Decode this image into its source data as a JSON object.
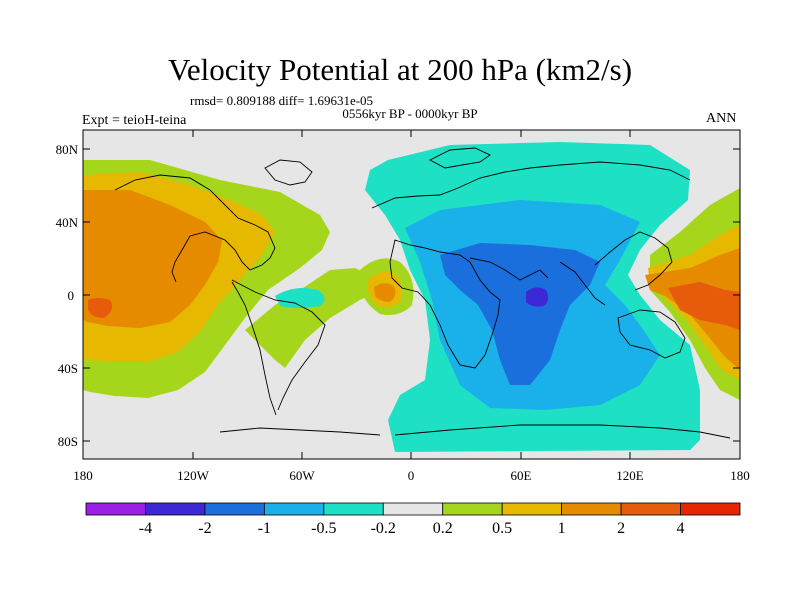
{
  "title": "Velocity Potential at 200 hPa (km2/s)",
  "stats": "rmsd= 0.809188 diff= 1.69631e-05",
  "period": "0556kyr BP - 0000kyr BP",
  "experiment": "Expt = teioH-teina",
  "season": "ANN",
  "map": {
    "lat_ticks": [
      "80N",
      "40N",
      "0",
      "40S",
      "80S"
    ],
    "lon_ticks": [
      "180",
      "120W",
      "60W",
      "0",
      "60E",
      "120E",
      "180"
    ]
  },
  "colorbar": {
    "colors": [
      "#9b1fe6",
      "#3c28d6",
      "#1a6fdc",
      "#1ab0ea",
      "#1ee0c4",
      "#e6e6e6",
      "#a6d61c",
      "#e6b800",
      "#e68a00",
      "#e65c0a",
      "#e62600"
    ],
    "labels": [
      "-4",
      "-2",
      "-1",
      "-0.5",
      "-0.2",
      "0.2",
      "0.5",
      "1",
      "2",
      "4"
    ]
  },
  "field_colors": {
    "neutral": "#e6e6e6",
    "lightgreen": "#a6d61c",
    "yellow": "#e6b800",
    "orange": "#e68a00",
    "red": "#e65c0a",
    "teal": "#1ee0c4",
    "cyan": "#1ab0ea",
    "blue": "#1a6fdc",
    "darkblue": "#3c28d6",
    "coast": "#000000"
  }
}
